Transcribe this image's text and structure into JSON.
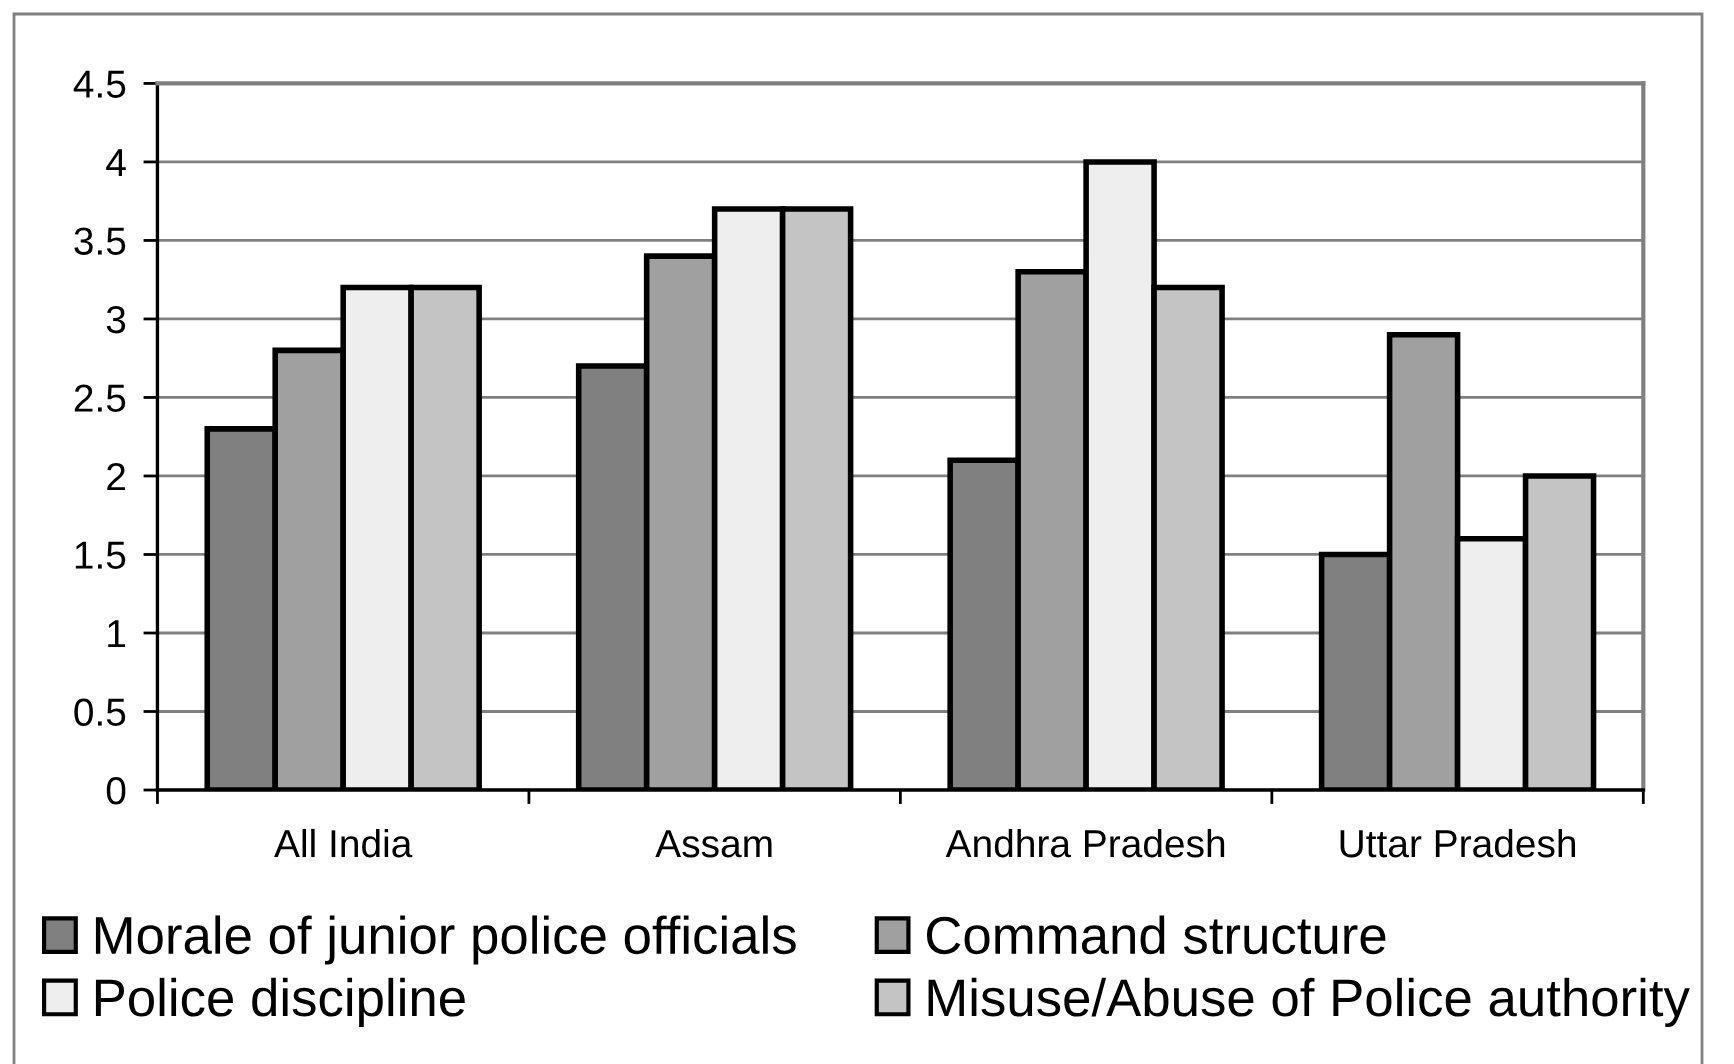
{
  "chart_data": {
    "type": "bar",
    "categories": [
      "All India",
      "Assam",
      "Andhra Pradesh",
      "Uttar Pradesh"
    ],
    "series": [
      {
        "name": "Morale of junior police officials",
        "color": "#808080",
        "values": [
          2.3,
          2.7,
          2.1,
          1.5
        ]
      },
      {
        "name": "Command structure",
        "color": "#a0a0a0",
        "values": [
          2.8,
          3.4,
          3.3,
          2.9
        ]
      },
      {
        "name": "Police discipline",
        "color": "#eeeeee",
        "values": [
          3.2,
          3.7,
          4.0,
          1.6
        ]
      },
      {
        "name": "Misuse/Abuse of Police authority",
        "color": "#c4c4c4",
        "values": [
          3.2,
          3.7,
          3.2,
          2.0
        ]
      }
    ],
    "ylim": [
      0,
      4.5
    ],
    "yticks": [
      0,
      0.5,
      1,
      1.5,
      2,
      2.5,
      3,
      3.5,
      4,
      4.5
    ],
    "grid": "y",
    "legend": "bottom"
  }
}
